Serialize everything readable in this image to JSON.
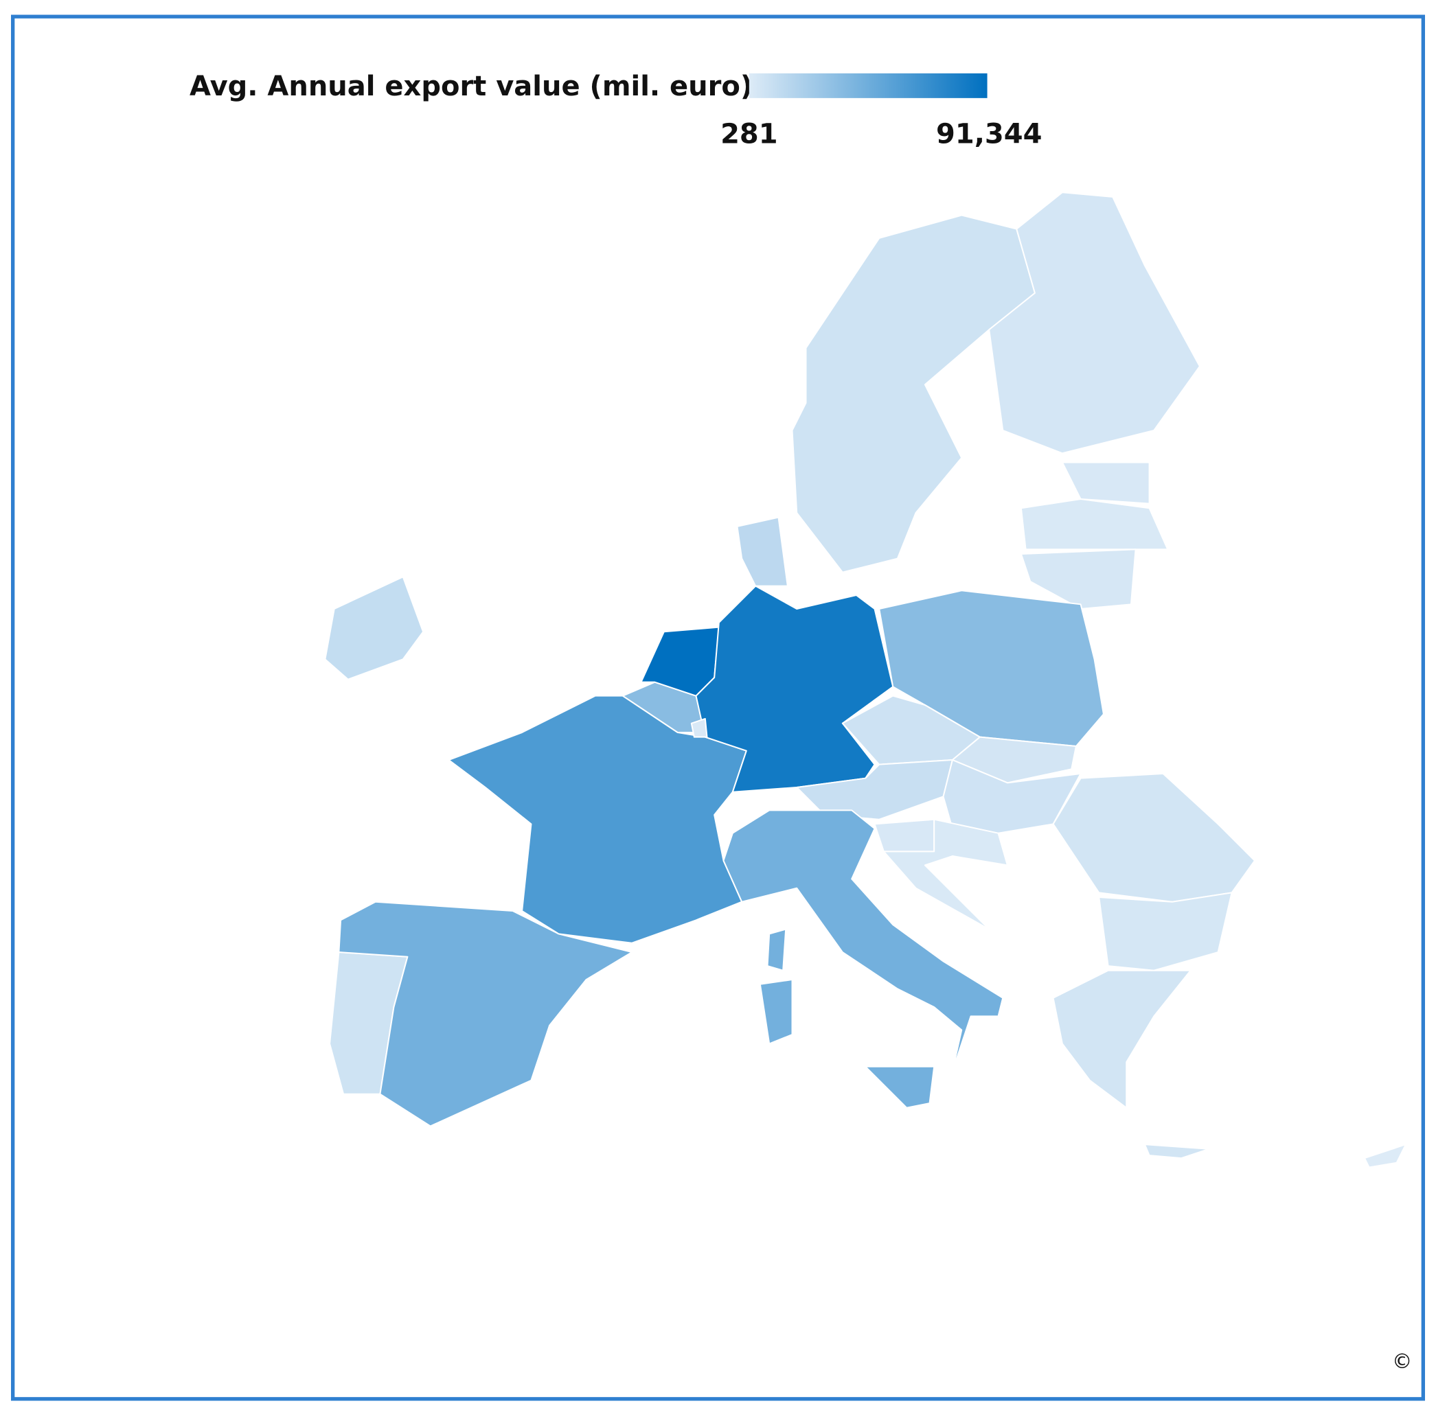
{
  "chart_data": {
    "type": "choropleth",
    "legend_title": "Avg. Annual export value (mil. euro)",
    "colorscale": [
      {
        "value": 281,
        "label": "281",
        "color": "#ddebf7"
      },
      {
        "value": 91344,
        "label": "91,344",
        "color": "#0070c0"
      }
    ],
    "values": [
      11000,
      6500,
      44000,
      59500,
      35000,
      91344,
      84000,
      14000,
      6500,
      4000,
      2500,
      2000,
      3000,
      35000,
      7000,
      4500,
      9000,
      6000,
      2500,
      2000,
      5000,
      3500,
      5000,
      44000,
      44000,
      44000,
      44000,
      281,
      2000,
      5000
    ],
    "copyright": "©"
  }
}
